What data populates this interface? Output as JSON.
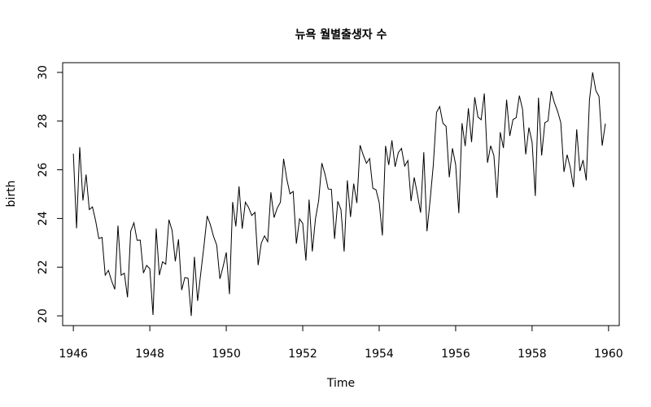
{
  "chart_data": {
    "type": "line",
    "title": "뉴욕 월별출생자 수",
    "xlabel": "Time",
    "ylabel": "birth",
    "xlim": [
      1945.72,
      1960.28
    ],
    "ylim": [
      19.6,
      30.4
    ],
    "x_ticks": [
      1946,
      1948,
      1950,
      1952,
      1954,
      1956,
      1958,
      1960
    ],
    "x_tick_labels": [
      "1946",
      "1948",
      "1950",
      "1952",
      "1954",
      "1956",
      "1958",
      "1960"
    ],
    "y_ticks": [
      20,
      22,
      24,
      26,
      28,
      30
    ],
    "y_tick_labels": [
      "20",
      "22",
      "24",
      "26",
      "28",
      "30"
    ],
    "grid": false,
    "x_start": 1946,
    "frequency": 12,
    "series": [
      {
        "color": "#000000",
        "values": [
          26.663,
          23.598,
          26.931,
          24.74,
          25.806,
          24.364,
          24.477,
          23.901,
          23.175,
          23.227,
          21.672,
          21.87,
          21.439,
          21.089,
          23.709,
          21.669,
          21.752,
          20.761,
          23.479,
          23.824,
          23.105,
          23.11,
          21.759,
          22.073,
          21.937,
          20.035,
          23.59,
          21.672,
          22.222,
          22.123,
          23.95,
          23.504,
          22.238,
          23.142,
          21.059,
          21.573,
          21.548,
          20.0,
          22.424,
          20.615,
          21.761,
          22.874,
          24.104,
          23.748,
          23.262,
          22.907,
          21.519,
          22.025,
          22.604,
          20.894,
          24.677,
          23.673,
          25.32,
          23.583,
          24.671,
          24.454,
          24.122,
          24.252,
          22.084,
          22.991,
          23.287,
          23.049,
          25.076,
          24.037,
          24.43,
          24.667,
          26.451,
          25.618,
          25.014,
          25.11,
          22.964,
          23.981,
          23.798,
          22.27,
          24.775,
          22.646,
          23.988,
          24.737,
          26.276,
          25.816,
          25.21,
          25.199,
          23.162,
          24.707,
          24.364,
          22.644,
          25.565,
          24.062,
          25.431,
          24.635,
          27.009,
          26.606,
          26.268,
          26.462,
          25.246,
          25.18,
          24.657,
          23.304,
          26.982,
          26.199,
          27.21,
          26.122,
          26.706,
          26.878,
          26.152,
          26.379,
          24.712,
          25.688,
          24.99,
          24.239,
          26.721,
          23.475,
          24.767,
          26.219,
          28.361,
          28.599,
          27.914,
          27.784,
          25.693,
          26.881,
          26.217,
          24.218,
          27.914,
          26.975,
          28.527,
          27.139,
          28.982,
          28.169,
          28.056,
          29.136,
          26.291,
          26.987,
          26.589,
          24.848,
          27.543,
          26.896,
          28.878,
          27.39,
          28.065,
          28.141,
          29.048,
          28.484,
          26.634,
          27.735,
          27.132,
          24.924,
          28.963,
          26.589,
          27.931,
          28.009,
          29.229,
          28.759,
          28.405,
          27.945,
          25.912,
          26.619,
          26.076,
          25.286,
          27.66,
          25.951,
          26.398,
          25.565,
          28.865,
          30.0,
          29.261,
          29.012,
          26.992,
          27.897
        ]
      }
    ]
  }
}
